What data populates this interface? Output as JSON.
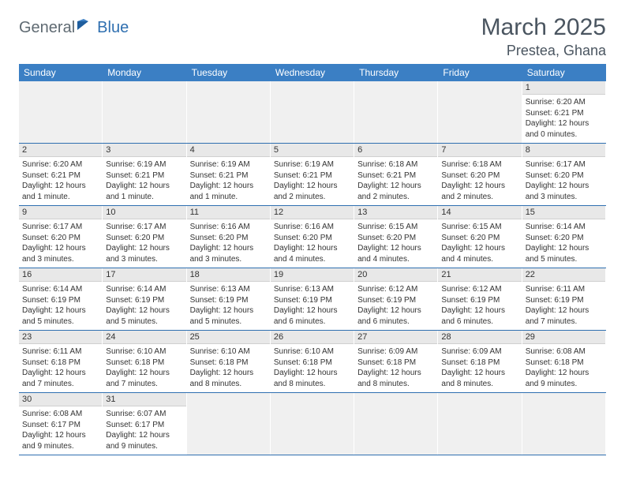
{
  "logo": {
    "text1": "General",
    "text2": "Blue"
  },
  "title": {
    "month": "March 2025",
    "location": "Prestea, Ghana"
  },
  "weekdays": [
    "Sunday",
    "Monday",
    "Tuesday",
    "Wednesday",
    "Thursday",
    "Friday",
    "Saturday"
  ],
  "colors": {
    "header_bg": "#3b7fc4",
    "header_text": "#ffffff",
    "row_sep": "#2f6fb0",
    "daynum_bg": "#e8e8e8",
    "empty_bg": "#f0f0f0",
    "logo_gray": "#5f6a72",
    "logo_blue": "#2f6fb0",
    "title_color": "#4a5560"
  },
  "first_weekday_index": 6,
  "days": [
    {
      "n": 1,
      "sunrise": "6:20 AM",
      "sunset": "6:21 PM",
      "daylight": "12 hours and 0 minutes."
    },
    {
      "n": 2,
      "sunrise": "6:20 AM",
      "sunset": "6:21 PM",
      "daylight": "12 hours and 1 minute."
    },
    {
      "n": 3,
      "sunrise": "6:19 AM",
      "sunset": "6:21 PM",
      "daylight": "12 hours and 1 minute."
    },
    {
      "n": 4,
      "sunrise": "6:19 AM",
      "sunset": "6:21 PM",
      "daylight": "12 hours and 1 minute."
    },
    {
      "n": 5,
      "sunrise": "6:19 AM",
      "sunset": "6:21 PM",
      "daylight": "12 hours and 2 minutes."
    },
    {
      "n": 6,
      "sunrise": "6:18 AM",
      "sunset": "6:21 PM",
      "daylight": "12 hours and 2 minutes."
    },
    {
      "n": 7,
      "sunrise": "6:18 AM",
      "sunset": "6:20 PM",
      "daylight": "12 hours and 2 minutes."
    },
    {
      "n": 8,
      "sunrise": "6:17 AM",
      "sunset": "6:20 PM",
      "daylight": "12 hours and 3 minutes."
    },
    {
      "n": 9,
      "sunrise": "6:17 AM",
      "sunset": "6:20 PM",
      "daylight": "12 hours and 3 minutes."
    },
    {
      "n": 10,
      "sunrise": "6:17 AM",
      "sunset": "6:20 PM",
      "daylight": "12 hours and 3 minutes."
    },
    {
      "n": 11,
      "sunrise": "6:16 AM",
      "sunset": "6:20 PM",
      "daylight": "12 hours and 3 minutes."
    },
    {
      "n": 12,
      "sunrise": "6:16 AM",
      "sunset": "6:20 PM",
      "daylight": "12 hours and 4 minutes."
    },
    {
      "n": 13,
      "sunrise": "6:15 AM",
      "sunset": "6:20 PM",
      "daylight": "12 hours and 4 minutes."
    },
    {
      "n": 14,
      "sunrise": "6:15 AM",
      "sunset": "6:20 PM",
      "daylight": "12 hours and 4 minutes."
    },
    {
      "n": 15,
      "sunrise": "6:14 AM",
      "sunset": "6:20 PM",
      "daylight": "12 hours and 5 minutes."
    },
    {
      "n": 16,
      "sunrise": "6:14 AM",
      "sunset": "6:19 PM",
      "daylight": "12 hours and 5 minutes."
    },
    {
      "n": 17,
      "sunrise": "6:14 AM",
      "sunset": "6:19 PM",
      "daylight": "12 hours and 5 minutes."
    },
    {
      "n": 18,
      "sunrise": "6:13 AM",
      "sunset": "6:19 PM",
      "daylight": "12 hours and 5 minutes."
    },
    {
      "n": 19,
      "sunrise": "6:13 AM",
      "sunset": "6:19 PM",
      "daylight": "12 hours and 6 minutes."
    },
    {
      "n": 20,
      "sunrise": "6:12 AM",
      "sunset": "6:19 PM",
      "daylight": "12 hours and 6 minutes."
    },
    {
      "n": 21,
      "sunrise": "6:12 AM",
      "sunset": "6:19 PM",
      "daylight": "12 hours and 6 minutes."
    },
    {
      "n": 22,
      "sunrise": "6:11 AM",
      "sunset": "6:19 PM",
      "daylight": "12 hours and 7 minutes."
    },
    {
      "n": 23,
      "sunrise": "6:11 AM",
      "sunset": "6:18 PM",
      "daylight": "12 hours and 7 minutes."
    },
    {
      "n": 24,
      "sunrise": "6:10 AM",
      "sunset": "6:18 PM",
      "daylight": "12 hours and 7 minutes."
    },
    {
      "n": 25,
      "sunrise": "6:10 AM",
      "sunset": "6:18 PM",
      "daylight": "12 hours and 8 minutes."
    },
    {
      "n": 26,
      "sunrise": "6:10 AM",
      "sunset": "6:18 PM",
      "daylight": "12 hours and 8 minutes."
    },
    {
      "n": 27,
      "sunrise": "6:09 AM",
      "sunset": "6:18 PM",
      "daylight": "12 hours and 8 minutes."
    },
    {
      "n": 28,
      "sunrise": "6:09 AM",
      "sunset": "6:18 PM",
      "daylight": "12 hours and 8 minutes."
    },
    {
      "n": 29,
      "sunrise": "6:08 AM",
      "sunset": "6:18 PM",
      "daylight": "12 hours and 9 minutes."
    },
    {
      "n": 30,
      "sunrise": "6:08 AM",
      "sunset": "6:17 PM",
      "daylight": "12 hours and 9 minutes."
    },
    {
      "n": 31,
      "sunrise": "6:07 AM",
      "sunset": "6:17 PM",
      "daylight": "12 hours and 9 minutes."
    }
  ],
  "labels": {
    "sunrise_prefix": "Sunrise: ",
    "sunset_prefix": "Sunset: ",
    "daylight_prefix": "Daylight: "
  }
}
